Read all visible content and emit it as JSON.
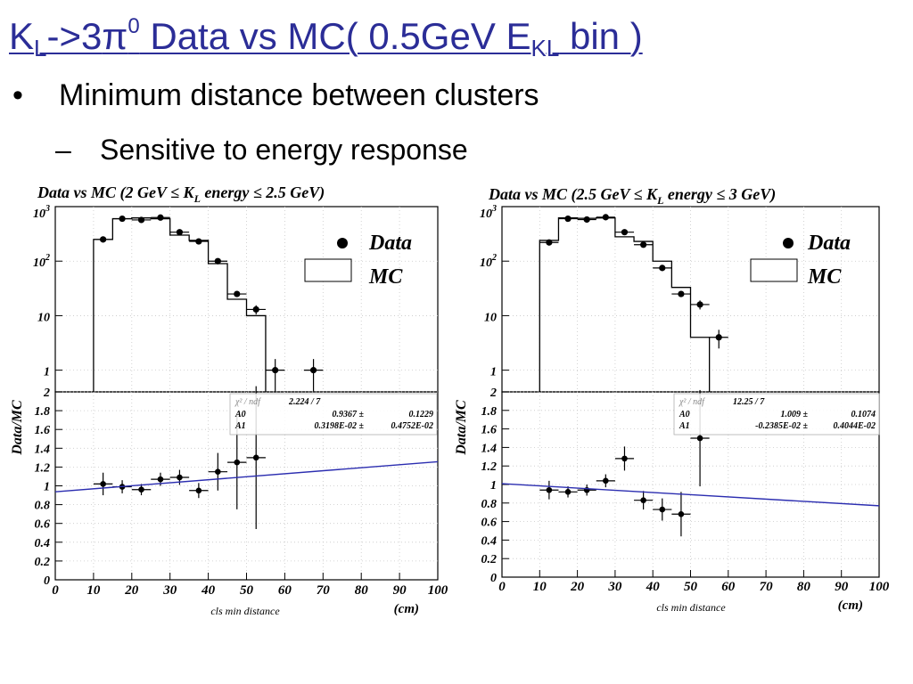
{
  "slide": {
    "title_parts": {
      "k": "K",
      "l": "L",
      "arrow": "->3",
      "pi": "π",
      "zero": "0",
      "mid": " Data vs MC( 0.5GeV E",
      "kl": "KL",
      "end": " bin )"
    },
    "bullet": "Minimum distance between clusters",
    "sub_bullet": "Sensitive to energy response",
    "bullet_glyph": "•",
    "dash_glyph": "–"
  },
  "chart_data": [
    {
      "type": "histogram",
      "title": "Data vs MC (2 GeV ≤ K_L energy ≤ 2.5 GeV)",
      "xlabel": "cls min distance",
      "xunit": "(cm)",
      "top_ylabel": "",
      "bottom_ylabel": "Data/MC",
      "xlim": [
        0,
        100
      ],
      "top_ylim_log": [
        0.4,
        1000
      ],
      "bottom_ylim": [
        0,
        2
      ],
      "x_ticks": [
        "0",
        "10",
        "20",
        "30",
        "40",
        "50",
        "60",
        "70",
        "80",
        "90",
        "100"
      ],
      "top_ticks": [
        "1",
        "10",
        "10²",
        "10³"
      ],
      "bottom_ticks": [
        "0",
        "0.2",
        "0.4",
        "0.6",
        "0.8",
        "1",
        "1.2",
        "1.4",
        "1.6",
        "1.8",
        "2"
      ],
      "legend": [
        {
          "name": "Data",
          "style": "marker"
        },
        {
          "name": "MC",
          "style": "box"
        }
      ],
      "mc_bins": [
        {
          "x0": 10,
          "x1": 15,
          "y": 250
        },
        {
          "x0": 15,
          "x1": 20,
          "y": 600
        },
        {
          "x0": 20,
          "x1": 25,
          "y": 620
        },
        {
          "x0": 25,
          "x1": 30,
          "y": 600
        },
        {
          "x0": 30,
          "x1": 35,
          "y": 300
        },
        {
          "x0": 35,
          "x1": 40,
          "y": 240
        },
        {
          "x0": 40,
          "x1": 45,
          "y": 90
        },
        {
          "x0": 45,
          "x1": 50,
          "y": 20
        },
        {
          "x0": 50,
          "x1": 55,
          "y": 10
        }
      ],
      "data_points": [
        {
          "x": 12.5,
          "y": 250,
          "err": 0
        },
        {
          "x": 17.5,
          "y": 600,
          "err": 0
        },
        {
          "x": 22.5,
          "y": 570,
          "err": 0
        },
        {
          "x": 27.5,
          "y": 630,
          "err": 0
        },
        {
          "x": 32.5,
          "y": 340,
          "err": 0
        },
        {
          "x": 37.5,
          "y": 230,
          "err": 0
        },
        {
          "x": 42.5,
          "y": 100,
          "err": 0
        },
        {
          "x": 47.5,
          "y": 25,
          "err": 3
        },
        {
          "x": 52.5,
          "y": 13,
          "err": 2.5
        },
        {
          "x": 57.5,
          "y": 1,
          "err": 0.6
        },
        {
          "x": 67.5,
          "y": 1,
          "err": 0.6
        }
      ],
      "ratio_points": [
        {
          "x": 12.5,
          "y": 1.02,
          "err": 0.12
        },
        {
          "x": 17.5,
          "y": 0.99,
          "err": 0.07
        },
        {
          "x": 22.5,
          "y": 0.96,
          "err": 0.06
        },
        {
          "x": 27.5,
          "y": 1.07,
          "err": 0.07
        },
        {
          "x": 32.5,
          "y": 1.09,
          "err": 0.08
        },
        {
          "x": 37.5,
          "y": 0.95,
          "err": 0.08
        },
        {
          "x": 42.5,
          "y": 1.15,
          "err": 0.2
        },
        {
          "x": 47.5,
          "y": 1.25,
          "err": 0.5
        },
        {
          "x": 52.5,
          "y": 1.3,
          "err": 0.76
        }
      ],
      "fit_line": {
        "x0": 0,
        "y0": 0.9367,
        "x1": 100,
        "y1": 1.2565
      },
      "fit_box": {
        "chi2_label": "χ² / ndf",
        "chi2": "2.224   /   7",
        "rows": [
          {
            "name": "A0",
            "value": "0.9367 ±",
            "error": "0.1229"
          },
          {
            "name": "A1",
            "value": "0.3198E-02 ±",
            "error": "0.4752E-02"
          }
        ]
      }
    },
    {
      "type": "histogram",
      "title": "Data vs MC (2.5 GeV ≤ K_L energy ≤ 3 GeV)",
      "xlabel": "cls min distance",
      "xunit": "(cm)",
      "top_ylabel": "",
      "bottom_ylabel": "Data/MC",
      "xlim": [
        0,
        100
      ],
      "top_ylim_log": [
        0.4,
        1000
      ],
      "bottom_ylim": [
        0,
        2
      ],
      "x_ticks": [
        "0",
        "10",
        "20",
        "30",
        "40",
        "50",
        "60",
        "70",
        "80",
        "90",
        "100"
      ],
      "top_ticks": [
        "1",
        "10",
        "10²",
        "10³"
      ],
      "bottom_ticks": [
        "0",
        "0.2",
        "0.4",
        "0.6",
        "0.8",
        "1",
        "1.2",
        "1.4",
        "1.6",
        "1.8",
        "2"
      ],
      "legend": [
        {
          "name": "Data",
          "style": "marker"
        },
        {
          "name": "MC",
          "style": "box"
        }
      ],
      "mc_bins": [
        {
          "x0": 10,
          "x1": 15,
          "y": 240
        },
        {
          "x0": 15,
          "x1": 20,
          "y": 620
        },
        {
          "x0": 20,
          "x1": 25,
          "y": 610
        },
        {
          "x0": 25,
          "x1": 30,
          "y": 620
        },
        {
          "x0": 30,
          "x1": 35,
          "y": 280
        },
        {
          "x0": 35,
          "x1": 40,
          "y": 230
        },
        {
          "x0": 40,
          "x1": 45,
          "y": 100
        },
        {
          "x0": 45,
          "x1": 50,
          "y": 33
        },
        {
          "x0": 50,
          "x1": 55,
          "y": 4
        }
      ],
      "data_points": [
        {
          "x": 12.5,
          "y": 220,
          "err": 0
        },
        {
          "x": 17.5,
          "y": 600,
          "err": 0
        },
        {
          "x": 22.5,
          "y": 580,
          "err": 0
        },
        {
          "x": 27.5,
          "y": 640,
          "err": 0
        },
        {
          "x": 32.5,
          "y": 340,
          "err": 0
        },
        {
          "x": 37.5,
          "y": 200,
          "err": 0
        },
        {
          "x": 42.5,
          "y": 75,
          "err": 0
        },
        {
          "x": 47.5,
          "y": 25,
          "err": 3
        },
        {
          "x": 52.5,
          "y": 16,
          "err": 3
        },
        {
          "x": 57.5,
          "y": 4,
          "err": 1.5
        }
      ],
      "ratio_points": [
        {
          "x": 12.5,
          "y": 0.94,
          "err": 0.1
        },
        {
          "x": 17.5,
          "y": 0.92,
          "err": 0.06
        },
        {
          "x": 22.5,
          "y": 0.94,
          "err": 0.06
        },
        {
          "x": 27.5,
          "y": 1.04,
          "err": 0.07
        },
        {
          "x": 32.5,
          "y": 1.28,
          "err": 0.13
        },
        {
          "x": 37.5,
          "y": 0.83,
          "err": 0.1
        },
        {
          "x": 42.5,
          "y": 0.73,
          "err": 0.12
        },
        {
          "x": 47.5,
          "y": 0.68,
          "err": 0.24
        },
        {
          "x": 52.5,
          "y": 1.5,
          "err": 0.52
        }
      ],
      "fit_line": {
        "x0": 0,
        "y0": 1.009,
        "x1": 100,
        "y1": 0.7705
      },
      "fit_box": {
        "chi2_label": "χ² / ndf",
        "chi2": "12.25   /   7",
        "rows": [
          {
            "name": "A0",
            "value": "1.009 ±",
            "error": "0.1074"
          },
          {
            "name": "A1",
            "value": "-0.2385E-02 ±",
            "error": "0.4044E-02"
          }
        ]
      }
    }
  ]
}
